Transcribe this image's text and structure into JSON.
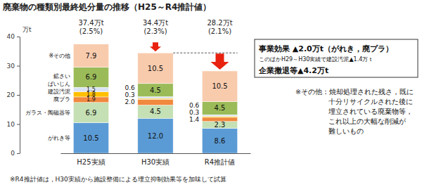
{
  "chart_data": {
    "type": "bar",
    "stacked": true,
    "data_labels": true,
    "title": "廃棄物の種類別最終処分量の推移（H25～R4推計値）",
    "ylabel": "万t",
    "categories": [
      "H25実績",
      "H30実績",
      "R4推計値"
    ],
    "ylim": [
      0,
      40
    ],
    "yticks": [
      0,
      10,
      20,
      30,
      40
    ],
    "series": [
      {
        "name": "がれき等",
        "color": "#5b9bd5",
        "values": [
          10.5,
          12,
          8.6
        ],
        "value_labels": [
          "10.5",
          "12.0",
          "8.6"
        ]
      },
      {
        "name": "ガラス・陶磁器等",
        "color": "#c5e0b4",
        "values": [
          6.9,
          4.5,
          2.3
        ],
        "value_labels": [
          "6.9",
          "4.5",
          "2.3"
        ]
      },
      {
        "name": "廃プラ",
        "color": "#f0883e",
        "values": [
          1.9,
          2,
          1.4
        ],
        "value_labels": [
          "1.9",
          "2.0",
          "1.4"
        ]
      },
      {
        "name": "建設汚泥",
        "color": "#ffc000",
        "values": [
          1.8,
          0.3,
          0.3
        ],
        "value_labels": [
          "1.8",
          "0.3",
          "0.3"
        ]
      },
      {
        "name": "ばいじん",
        "color": "#dae3f3",
        "values": [
          1.5,
          0.6,
          0.6
        ],
        "value_labels": [
          "1.5",
          "0.6",
          "0.6"
        ]
      },
      {
        "name": "鉱さい",
        "color": "#9bbb59",
        "values": [
          6.9,
          4.5,
          4.5
        ],
        "value_labels": [
          "6.9",
          "4.5",
          "4.5"
        ]
      },
      {
        "name": "※その他",
        "color": "#f8cbad",
        "values": [
          7.9,
          10.5,
          10.5
        ],
        "value_labels": [
          "7.9",
          "10.5",
          "10.5"
        ]
      }
    ],
    "totals": {
      "values": [
        37.4,
        34.4,
        28.2
      ],
      "labels": [
        "37.4万t",
        "34.4万t",
        "28.2万t"
      ]
    },
    "shares": {
      "values": [
        2.5,
        2.3,
        2.1
      ],
      "labels": [
        "(2.5%)",
        "(2.3%)",
        "(2.1%)"
      ]
    },
    "annotations": {
      "effects": [
        "事業効果 ▲2.0万t（がれき，廃プラ）",
        "このほかH29～H30実績で建設汚泥▲1.4万ｔ",
        "企業撤退等▲4.2万t"
      ],
      "note": [
        "※その他：焼却処理された残さ，既に",
        "十分リサイクルされた後に",
        "埋立されている廃棄物等，",
        "これ以上の大幅な削減が",
        "難しいもの"
      ],
      "footnote": "※R4推計値は，H30実績から施設整備による埋立抑制効果等を加味して試算"
    }
  }
}
